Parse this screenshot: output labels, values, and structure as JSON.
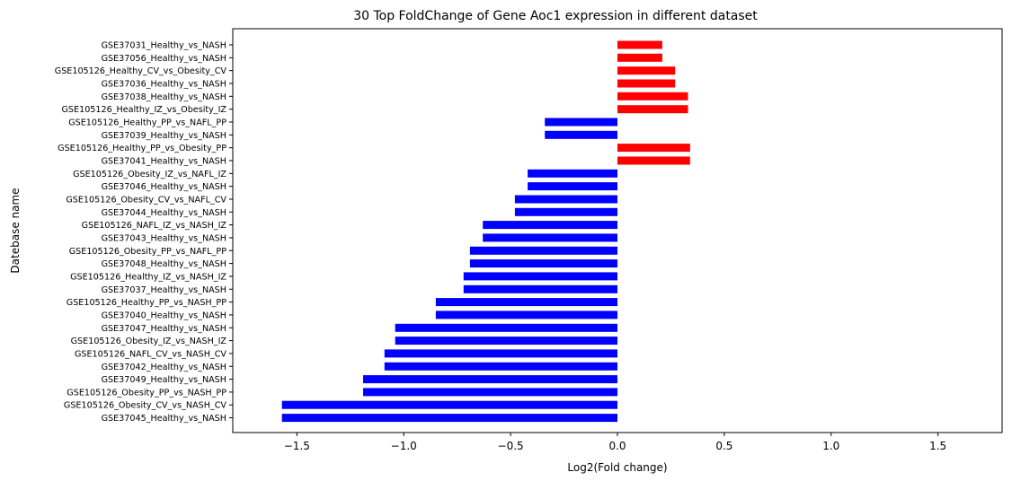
{
  "chart_data": {
    "type": "bar",
    "orientation": "horizontal",
    "title": "30 Top FoldChange of Gene Aoc1 expression in different dataset",
    "xlabel": "Log2(Fold change)",
    "ylabel": "Datebase name",
    "xlim": [
      -1.8,
      1.8
    ],
    "xticks": [
      -1.5,
      -1.0,
      -0.5,
      0.0,
      0.5,
      1.0,
      1.5
    ],
    "xtick_labels": [
      "−1.5",
      "−1.0",
      "−0.5",
      "0.0",
      "0.5",
      "1.0",
      "1.5"
    ],
    "grid": false,
    "colors": {
      "positive": "#ff0000",
      "negative": "#0000ff"
    },
    "categories": [
      "GSE37031_Healthy_vs_NASH",
      "GSE37056_Healthy_vs_NASH",
      "GSE105126_Healthy_CV_vs_Obesity_CV",
      "GSE37036_Healthy_vs_NASH",
      "GSE37038_Healthy_vs_NASH",
      "GSE105126_Healthy_IZ_vs_Obesity_IZ",
      "GSE105126_Healthy_PP_vs_NAFL_PP",
      "GSE37039_Healthy_vs_NASH",
      "GSE105126_Healthy_PP_vs_Obesity_PP",
      "GSE37041_Healthy_vs_NASH",
      "GSE105126_Obesity_IZ_vs_NAFL_IZ",
      "GSE37046_Healthy_vs_NASH",
      "GSE105126_Obesity_CV_vs_NAFL_CV",
      "GSE37044_Healthy_vs_NASH",
      "GSE105126_NAFL_IZ_vs_NASH_IZ",
      "GSE37043_Healthy_vs_NASH",
      "GSE105126_Obesity_PP_vs_NAFL_PP",
      "GSE37048_Healthy_vs_NASH",
      "GSE105126_Healthy_IZ_vs_NASH_IZ",
      "GSE37037_Healthy_vs_NASH",
      "GSE105126_Healthy_PP_vs_NASH_PP",
      "GSE37040_Healthy_vs_NASH",
      "GSE37047_Healthy_vs_NASH",
      "GSE105126_Obesity_IZ_vs_NASH_IZ",
      "GSE105126_NAFL_CV_vs_NASH_CV",
      "GSE37042_Healthy_vs_NASH",
      "GSE37049_Healthy_vs_NASH",
      "GSE105126_Obesity_PP_vs_NASH_PP",
      "GSE105126_Obesity_CV_vs_NASH_CV",
      "GSE37045_Healthy_vs_NASH"
    ],
    "values": [
      0.21,
      0.21,
      0.27,
      0.27,
      0.33,
      0.33,
      -0.34,
      -0.34,
      0.34,
      0.34,
      -0.42,
      -0.42,
      -0.48,
      -0.48,
      -0.63,
      -0.63,
      -0.69,
      -0.69,
      -0.72,
      -0.72,
      -0.85,
      -0.85,
      -1.04,
      -1.04,
      -1.09,
      -1.09,
      -1.19,
      -1.19,
      -1.57,
      -1.57
    ]
  }
}
